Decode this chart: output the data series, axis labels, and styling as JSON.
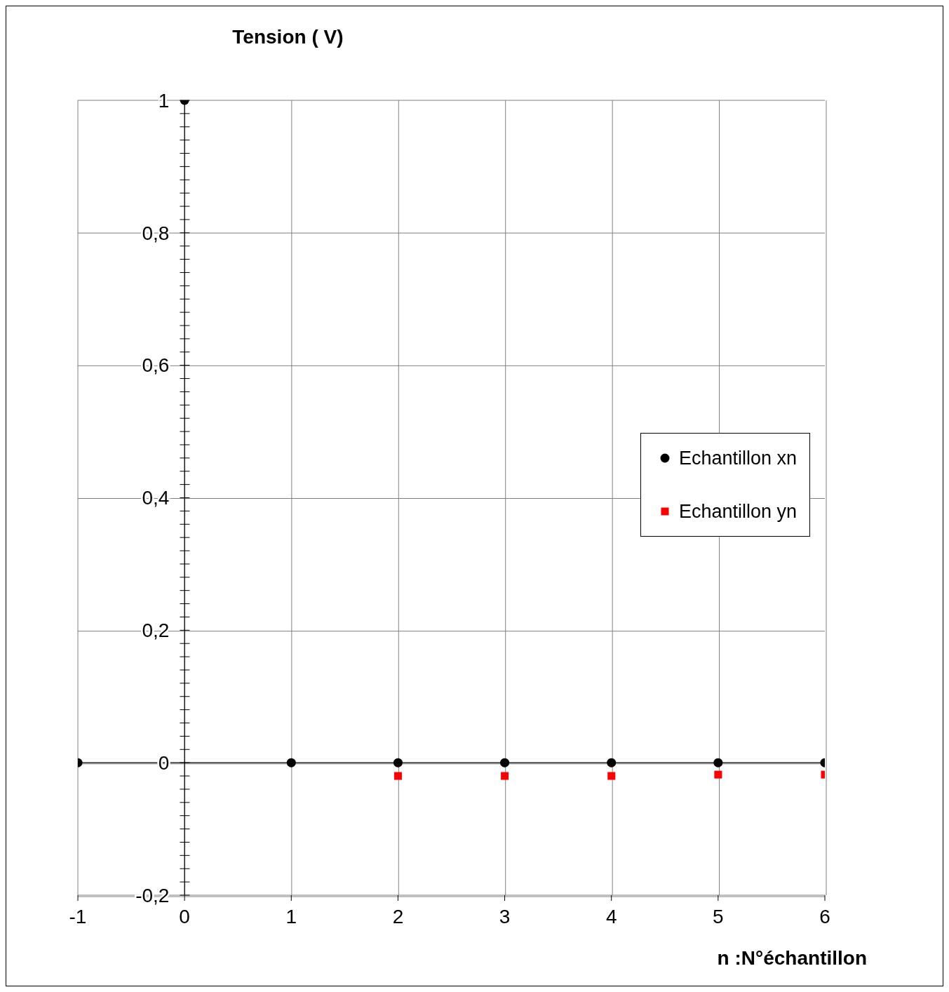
{
  "chart_data": {
    "type": "scatter",
    "ylabel": "Tension ( V)",
    "xlabel": "n :N°échantillon",
    "xlim": [
      -1,
      6
    ],
    "xticks": [
      -1,
      0,
      1,
      2,
      3,
      4,
      5,
      6
    ],
    "ylim": [
      -0.2,
      1
    ],
    "yticks": [
      {
        "value": -0.2,
        "label": "-0,2"
      },
      {
        "value": -0.18,
        "label": null
      },
      {
        "value": -0.16,
        "label": null
      },
      {
        "value": -0.14,
        "label": null
      },
      {
        "value": -0.12,
        "label": null
      },
      {
        "value": -0.1,
        "label": null
      },
      {
        "value": -0.08,
        "label": null
      },
      {
        "value": -0.06,
        "label": null
      },
      {
        "value": -0.04,
        "label": null
      },
      {
        "value": -0.02,
        "label": null
      },
      0,
      {
        "value": 0.02,
        "label": null
      },
      {
        "value": 0.04,
        "label": null
      },
      {
        "value": 0.06,
        "label": null
      },
      {
        "value": 0.08,
        "label": null
      },
      {
        "value": 0.1,
        "label": null
      },
      {
        "value": 0.12,
        "label": null
      },
      {
        "value": 0.14,
        "label": null
      },
      {
        "value": 0.16,
        "label": null
      },
      {
        "value": 0.18,
        "label": null
      },
      {
        "value": 0.2,
        "label": "0,2"
      },
      {
        "value": 0.22,
        "label": null
      },
      {
        "value": 0.24,
        "label": null
      },
      {
        "value": 0.26,
        "label": null
      },
      {
        "value": 0.28,
        "label": null
      },
      {
        "value": 0.3,
        "label": null
      },
      {
        "value": 0.32,
        "label": null
      },
      {
        "value": 0.34,
        "label": null
      },
      {
        "value": 0.36,
        "label": null
      },
      {
        "value": 0.38,
        "label": null
      },
      {
        "value": 0.4,
        "label": "0,4"
      },
      {
        "value": 0.42,
        "label": null
      },
      {
        "value": 0.44,
        "label": null
      },
      {
        "value": 0.46,
        "label": null
      },
      {
        "value": 0.48,
        "label": null
      },
      {
        "value": 0.5,
        "label": null
      },
      {
        "value": 0.52,
        "label": null
      },
      {
        "value": 0.54,
        "label": null
      },
      {
        "value": 0.56,
        "label": null
      },
      {
        "value": 0.58,
        "label": null
      },
      {
        "value": 0.6,
        "label": "0,6"
      },
      {
        "value": 0.62,
        "label": null
      },
      {
        "value": 0.64,
        "label": null
      },
      {
        "value": 0.66,
        "label": null
      },
      {
        "value": 0.68,
        "label": null
      },
      {
        "value": 0.7,
        "label": null
      },
      {
        "value": 0.72,
        "label": null
      },
      {
        "value": 0.74,
        "label": null
      },
      {
        "value": 0.76,
        "label": null
      },
      {
        "value": 0.78,
        "label": null
      },
      {
        "value": 0.8,
        "label": "0,8"
      },
      {
        "value": 0.82,
        "label": null
      },
      {
        "value": 0.84,
        "label": null
      },
      {
        "value": 0.86,
        "label": null
      },
      {
        "value": 0.88,
        "label": null
      },
      {
        "value": 0.9,
        "label": null
      },
      {
        "value": 0.92,
        "label": null
      },
      {
        "value": 0.94,
        "label": null
      },
      {
        "value": 0.96,
        "label": null
      },
      {
        "value": 0.98,
        "label": null
      },
      1
    ],
    "grid": true,
    "legend": "right",
    "series": [
      {
        "name": "Echantillon xn",
        "color": "#000000",
        "marker": "circle",
        "x": [
          -1,
          0,
          1,
          2,
          3,
          4,
          5,
          6
        ],
        "values": [
          0,
          1,
          0,
          0,
          0,
          0,
          0,
          0
        ]
      },
      {
        "name": "Echantillon yn",
        "color": "#ff0000",
        "marker": "square",
        "x": [
          2,
          3,
          4,
          5,
          6
        ],
        "values": [
          -0.02,
          -0.02,
          -0.02,
          -0.018,
          -0.018
        ]
      }
    ]
  }
}
